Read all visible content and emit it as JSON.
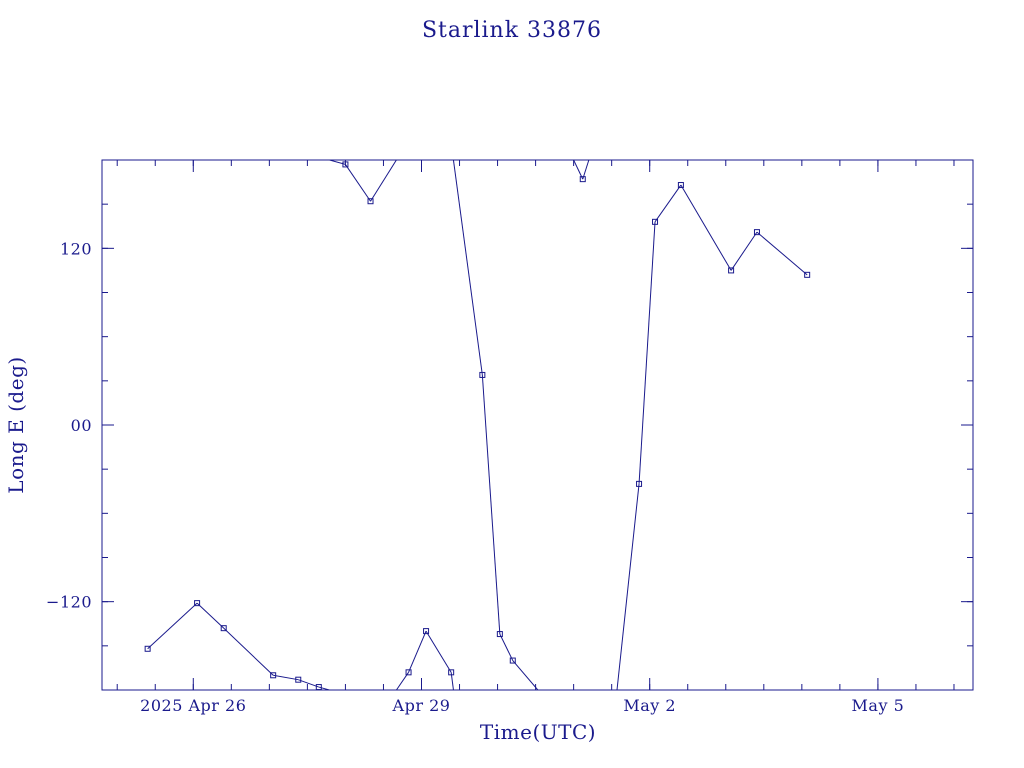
{
  "chart_data": {
    "type": "line",
    "title": "Starlink 33876",
    "xlabel": "Time(UTC)",
    "ylabel": "Long E (deg)",
    "xlim": [
      -1.2,
      10.25
    ],
    "ylim": [
      -180,
      180
    ],
    "x_ticks": [
      {
        "value": 0,
        "label": "2025 Apr 26"
      },
      {
        "value": 3,
        "label": "Apr 29"
      },
      {
        "value": 6,
        "label": "May  2"
      },
      {
        "value": 9,
        "label": "May  5"
      }
    ],
    "y_ticks": [
      {
        "value": 120,
        "label": "120"
      },
      {
        "value": 0,
        "label": "00"
      },
      {
        "value": -120,
        "label": "−120"
      }
    ],
    "grid": false,
    "legend": "none",
    "color": "#1a1a8c",
    "series": [
      {
        "x": [
          -0.6,
          0.05,
          0.4,
          1.05,
          1.38,
          1.65,
          2.0,
          2.33,
          2.67,
          2.83,
          3.06,
          3.39,
          3.42,
          3.8,
          4.03,
          4.2,
          4.53,
          5.0,
          5.12,
          5.2,
          5.57,
          5.86,
          6.07,
          6.41,
          7.07,
          7.41,
          8.07
        ],
        "y": [
          -152,
          -121,
          -138,
          -170,
          -173,
          -178,
          177,
          152,
          180,
          -168,
          -140,
          -168,
          180,
          34,
          -142,
          -160,
          -180,
          180,
          167,
          180,
          -180,
          -40,
          138,
          163,
          105,
          131,
          102
        ]
      }
    ]
  }
}
